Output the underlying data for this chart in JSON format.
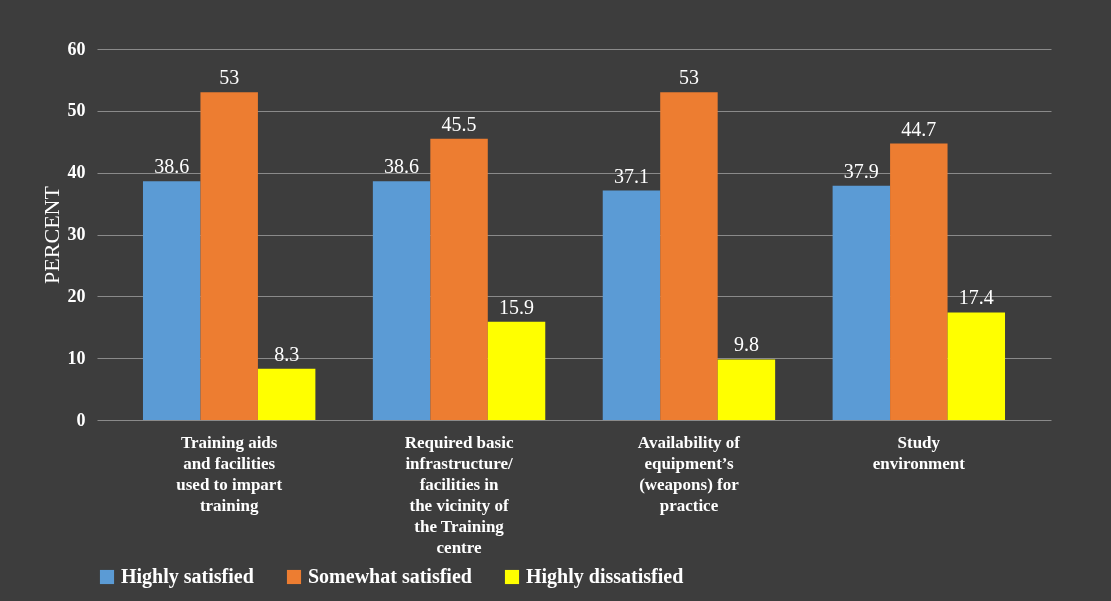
{
  "chart_data": {
    "type": "bar",
    "ylabel": "PERCENT",
    "categories": [
      "Training aids and facilities used to impart training",
      "Required basic infrastructure/ facilities in the vicinity of the Training centre",
      "Availability of equipment’s (weapons) for practice",
      "Study environment"
    ],
    "series": [
      {
        "name": "Highly satisfied",
        "color": "#5b9bd5",
        "values": [
          38.6,
          38.6,
          37.1,
          37.9
        ]
      },
      {
        "name": "Somewhat satisfied",
        "color": "#ed7d31",
        "values": [
          53,
          45.5,
          53,
          44.7
        ]
      },
      {
        "name": "Highly dissatisfied",
        "color": "#ffff00",
        "values": [
          8.3,
          15.9,
          9.8,
          17.4
        ]
      }
    ],
    "ylim": [
      0,
      60
    ],
    "yticks": [
      0,
      10,
      20,
      30,
      40,
      50,
      60
    ],
    "grid": true,
    "legend": "bottom",
    "data_labels": true
  }
}
